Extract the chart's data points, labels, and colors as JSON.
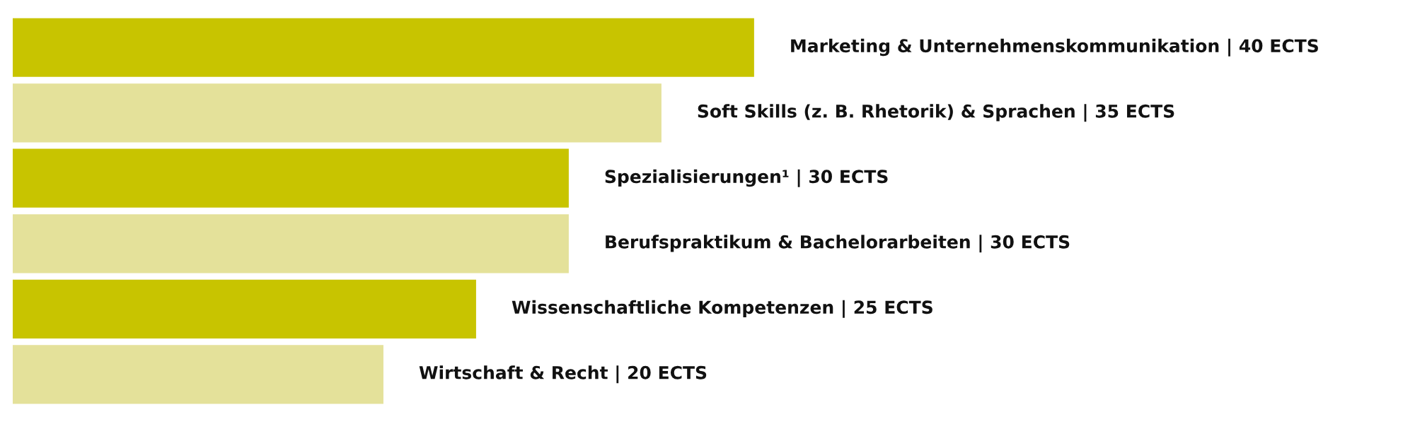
{
  "chart_data": {
    "type": "bar",
    "orientation": "horizontal",
    "categories": [
      null,
      null,
      null,
      null,
      null,
      null
    ],
    "values": [
      40,
      35,
      30,
      30,
      25,
      20
    ],
    "colors": [
      "#c8c400",
      "#e4e19a",
      "#c8c400",
      "#e4e19a",
      "#c8c400",
      "#e4e19a"
    ],
    "value_labels": [
      "Marketing & Unternehmenskommunikation | 40 ECTS",
      "Soft Skills (z. B. Rhetorik) & Sprachen | 35 ECTS",
      "Spezialisierungen¹ | 30 ECTS",
      "Berufspraktikum & Bachelorarbeiten | 30 ECTS",
      "Wissenschaftliche Kompetenzen | 25 ECTS",
      "Wirtschaft & Recht | 20 ECTS"
    ]
  }
}
